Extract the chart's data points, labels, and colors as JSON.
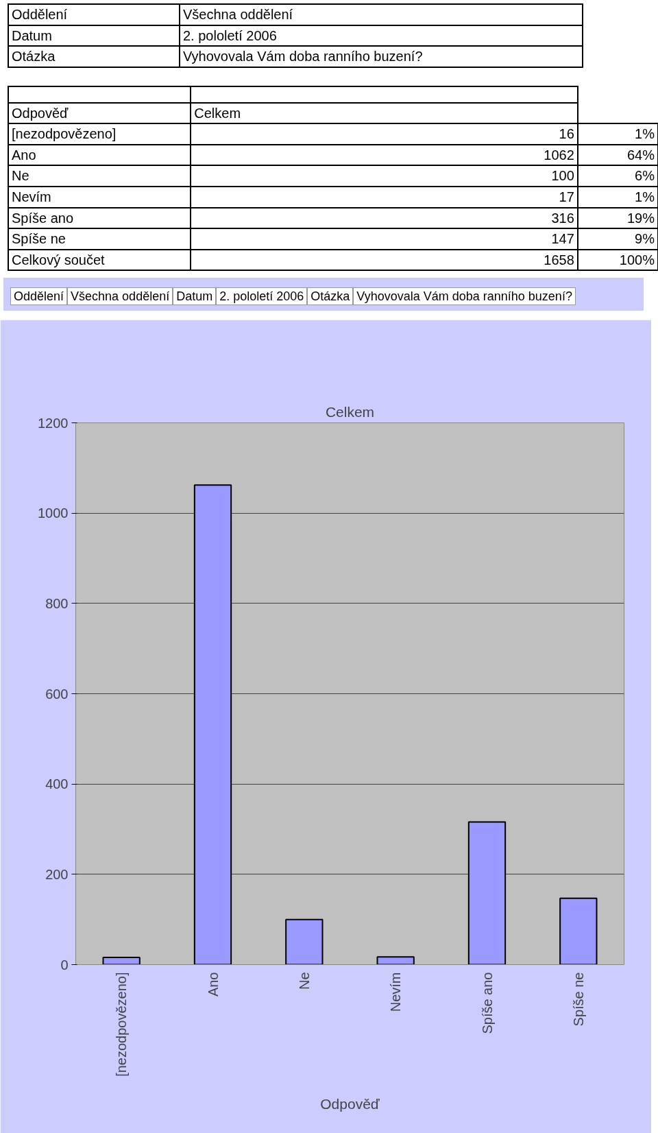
{
  "chart_data": {
    "type": "bar",
    "title": "Celkem",
    "xlabel": "Odpověď",
    "categories": [
      "[nezodpovězeno]",
      "Ano",
      "Ne",
      "Nevím",
      "Spíše ano",
      "Spíše ne"
    ],
    "values": [
      16,
      1062,
      100,
      17,
      316,
      147
    ],
    "color": "#9999ff",
    "ylim": [
      0,
      1200
    ],
    "yticks": [
      0,
      200,
      400,
      600,
      800,
      1000,
      1200
    ],
    "grid": "y",
    "annotations": [
      "Oddělení",
      "Všechna oddělení",
      "Datum",
      "2. pololetí 2006",
      "Otázka",
      "Vyhovovala Vám doba ranního buzení?",
      "Odpověď",
      "Celkem",
      "16",
      "1062",
      "100",
      "17",
      "316",
      "147",
      "1%",
      "64%",
      "6%",
      "1%",
      "19%",
      "9%",
      "Celkový součet",
      "1658",
      "100%"
    ]
  }
}
